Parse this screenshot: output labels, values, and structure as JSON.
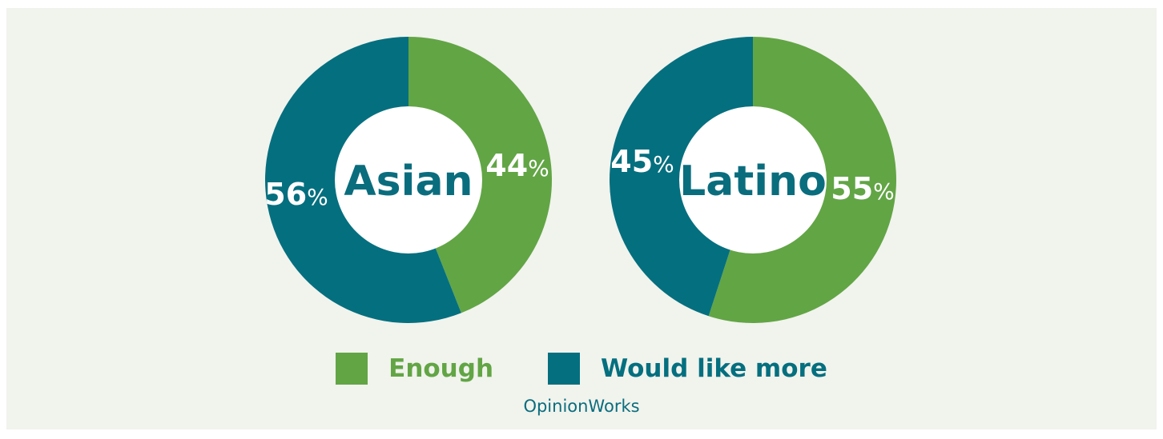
{
  "chart_data": [
    {
      "type": "pie",
      "title": "Asian",
      "categories": [
        "Enough",
        "Would like more"
      ],
      "values": [
        44,
        56
      ],
      "labels": [
        "44",
        "56"
      ],
      "colors": [
        "#62a545",
        "#046f7f"
      ]
    },
    {
      "type": "pie",
      "title": "Latino",
      "categories": [
        "Enough",
        "Would like more"
      ],
      "values": [
        55,
        45
      ],
      "labels": [
        "55",
        "45"
      ],
      "colors": [
        "#62a545",
        "#046f7f"
      ]
    }
  ],
  "percent_sign": "%",
  "legend": {
    "placement": "bottom-center",
    "items": [
      {
        "label": "Enough",
        "color": "#62a545"
      },
      {
        "label": "Would like more",
        "color": "#046f7f"
      }
    ]
  },
  "source": "OpinionWorks",
  "colors": {
    "background": "#f1f3ed",
    "enough": "#62a545",
    "would_like_more": "#046f7f",
    "title_text": "#0a6d7e"
  }
}
